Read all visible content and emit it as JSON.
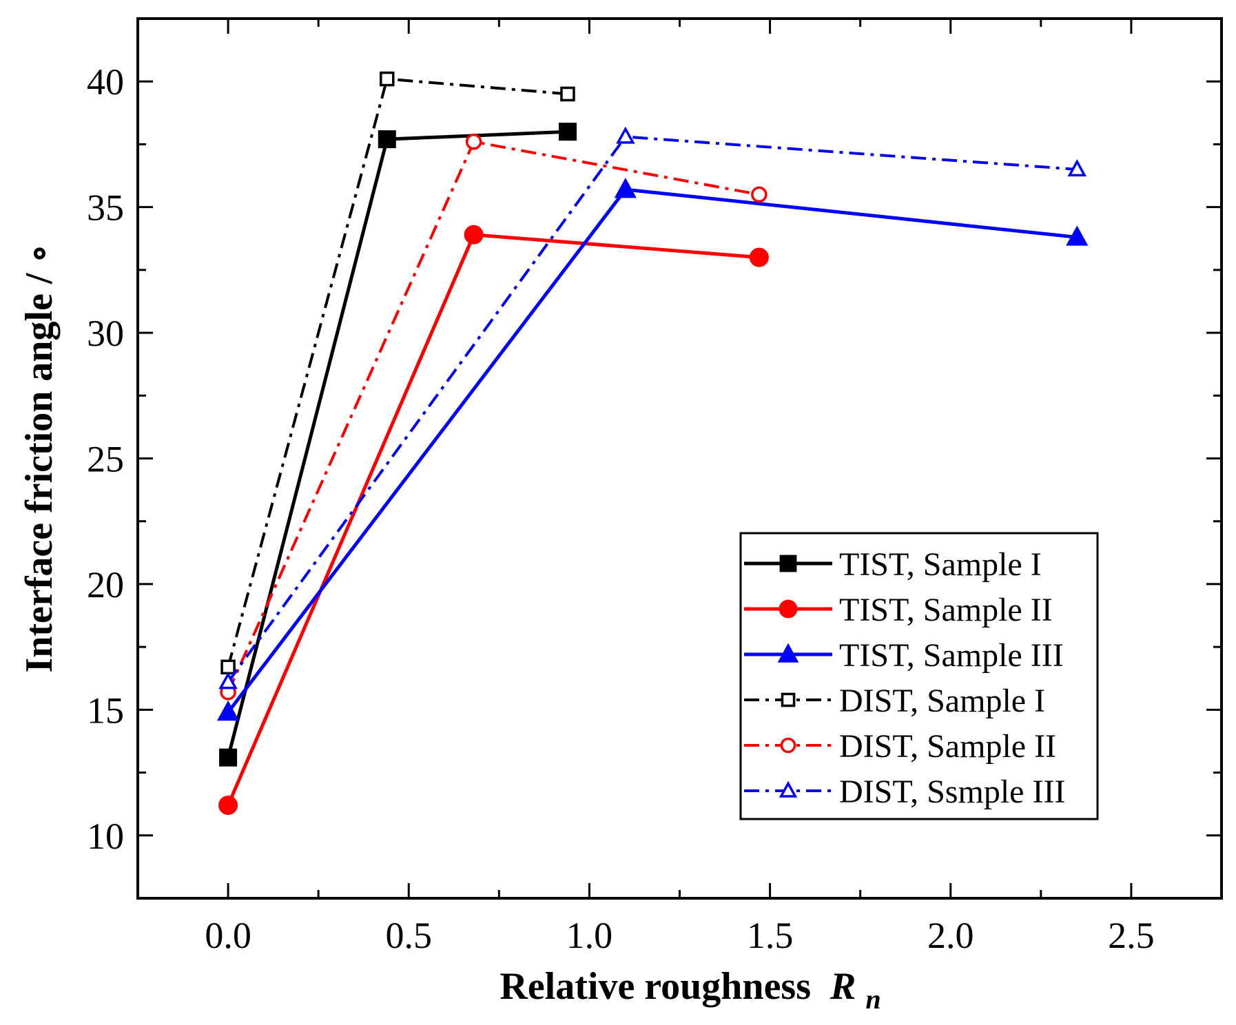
{
  "chart_data": {
    "type": "line",
    "title": "",
    "xlabel": "Relative roughness",
    "xlabel_symbol": "R",
    "xlabel_subscript": "n",
    "ylabel": "Interface friction angle / ∘",
    "xlim": [
      -0.25,
      2.75
    ],
    "ylim": [
      7.5,
      42.5
    ],
    "xticks": [
      0.0,
      0.5,
      1.0,
      1.5,
      2.0,
      2.5
    ],
    "xtick_labels": [
      "0.0",
      "0.5",
      "1.0",
      "1.5",
      "2.0",
      "2.5"
    ],
    "yticks": [
      10,
      15,
      20,
      25,
      30,
      35,
      40
    ],
    "ytick_labels": [
      "10",
      "15",
      "20",
      "25",
      "30",
      "35",
      "40"
    ],
    "legend_position": "lower-right",
    "series": [
      {
        "name": "TIST, Sample I",
        "color": "#000000",
        "line": "solid",
        "marker": "square",
        "filled": true,
        "x": [
          0.0,
          0.44,
          0.94
        ],
        "y": [
          13.1,
          37.7,
          38.0
        ]
      },
      {
        "name": "TIST, Sample II",
        "color": "#ff0000",
        "line": "solid",
        "marker": "circle",
        "filled": true,
        "x": [
          0.0,
          0.68,
          1.47
        ],
        "y": [
          11.2,
          33.9,
          33.0
        ]
      },
      {
        "name": "TIST, Sample III",
        "color": "#0000ff",
        "line": "solid",
        "marker": "triangle",
        "filled": true,
        "x": [
          0.0,
          1.1,
          2.35
        ],
        "y": [
          14.9,
          35.7,
          33.8
        ]
      },
      {
        "name": "DIST, Sample I",
        "color": "#000000",
        "line": "dashdot",
        "marker": "square",
        "filled": false,
        "x": [
          0.0,
          0.44,
          0.94
        ],
        "y": [
          16.7,
          40.1,
          39.5
        ]
      },
      {
        "name": "DIST, Sample II",
        "color": "#ff0000",
        "line": "dashdot",
        "marker": "circle",
        "filled": false,
        "x": [
          0.0,
          0.68,
          1.47
        ],
        "y": [
          15.7,
          37.6,
          35.5
        ]
      },
      {
        "name": "DIST, Ssmple III",
        "color": "#0000ff",
        "line": "dashdot",
        "marker": "triangle",
        "filled": false,
        "x": [
          0.0,
          1.1,
          2.35
        ],
        "y": [
          16.1,
          37.8,
          36.5
        ]
      }
    ]
  }
}
